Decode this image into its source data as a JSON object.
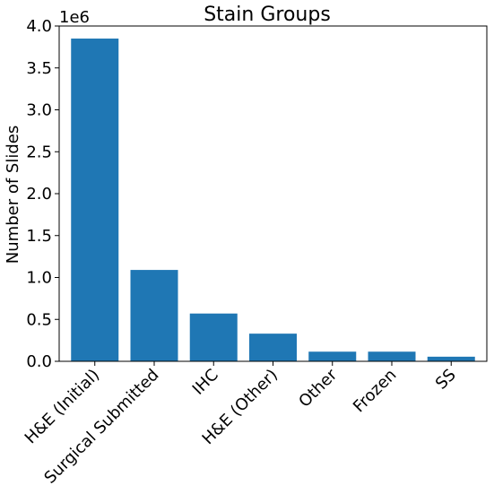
{
  "chart_data": {
    "type": "bar",
    "title": "Stain Groups",
    "xlabel": "",
    "ylabel": "Number of Slides",
    "offset_label": "1e6",
    "categories": [
      "H&E (Initial)",
      "Surgical Submitted",
      "IHC",
      "H&E (Other)",
      "Other",
      "Frozen",
      "SS"
    ],
    "values": [
      3850000,
      1090000,
      570000,
      330000,
      115000,
      115000,
      55000
    ],
    "ylim": [
      0,
      4.0
    ],
    "yscale_factor": 1000000,
    "yticks": [
      0.0,
      0.5,
      1.0,
      1.5,
      2.0,
      2.5,
      3.0,
      3.5,
      4.0
    ],
    "ytick_labels": [
      "0.0",
      "0.5",
      "1.0",
      "1.5",
      "2.0",
      "2.5",
      "3.0",
      "3.5",
      "4.0"
    ],
    "bar_color": "#1f77b4",
    "grid": false,
    "legend": "none"
  }
}
